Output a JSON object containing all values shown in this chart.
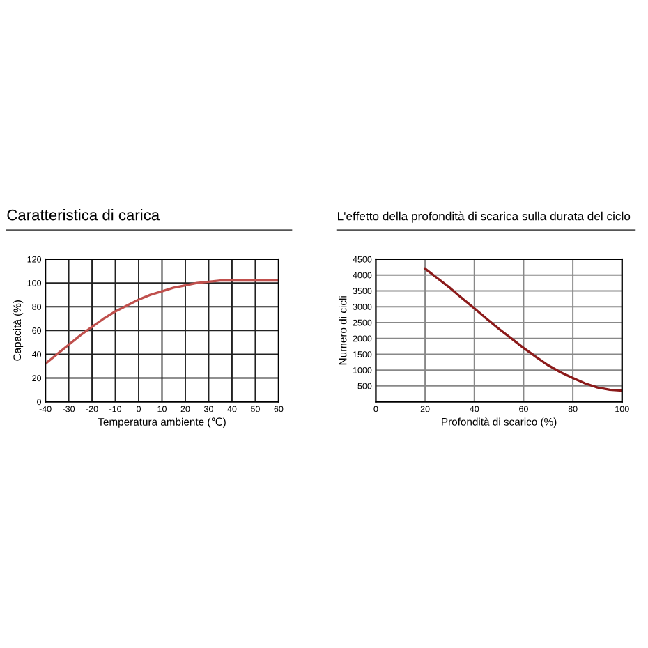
{
  "chart_data": [
    {
      "type": "line",
      "title": "Caratteristica di carica",
      "xlabel": "Temperatura ambiente (℃)",
      "ylabel": "Capacità (%)",
      "x": [
        -40,
        -35,
        -30,
        -25,
        -20,
        -15,
        -10,
        -5,
        0,
        5,
        10,
        15,
        20,
        25,
        30,
        35,
        40,
        45,
        50,
        55,
        60
      ],
      "series": [
        {
          "color": "#c0504d",
          "values": [
            32,
            40,
            48,
            56,
            63,
            70,
            76,
            81,
            86,
            90,
            93,
            96,
            98,
            100,
            101,
            102,
            102,
            102,
            102,
            102,
            102
          ]
        }
      ],
      "xlim": [
        -40,
        60
      ],
      "xticks": [
        -40,
        -30,
        -20,
        -10,
        0,
        10,
        20,
        30,
        40,
        50,
        60
      ],
      "ylim": [
        0,
        120
      ],
      "yticks": [
        0,
        20,
        40,
        60,
        80,
        100,
        120
      ],
      "grid": true,
      "marker": "none",
      "line_style": "solid"
    },
    {
      "type": "line",
      "title": "L'effetto della profondità di scarica sulla durata del ciclo",
      "xlabel": "Profondità di scarico (%)",
      "ylabel": "Numero di cicli",
      "x": [
        20,
        25,
        30,
        35,
        40,
        45,
        50,
        55,
        60,
        65,
        70,
        75,
        80,
        85,
        90,
        95,
        100
      ],
      "series": [
        {
          "color": "#8b1a1a",
          "values": [
            4200,
            3900,
            3600,
            3270,
            2950,
            2620,
            2300,
            2000,
            1700,
            1420,
            1150,
            930,
            750,
            580,
            450,
            380,
            350
          ]
        }
      ],
      "xlim": [
        0,
        100
      ],
      "xticks": [
        0,
        20,
        40,
        60,
        80,
        100
      ],
      "ylim": [
        0,
        4500
      ],
      "yticks": [
        {
          "value": 0,
          "label": null
        },
        500,
        1000,
        1500,
        2000,
        2500,
        3000,
        3500,
        4000,
        4500
      ],
      "grid": true,
      "marker": "none",
      "line_style": "solid"
    }
  ]
}
